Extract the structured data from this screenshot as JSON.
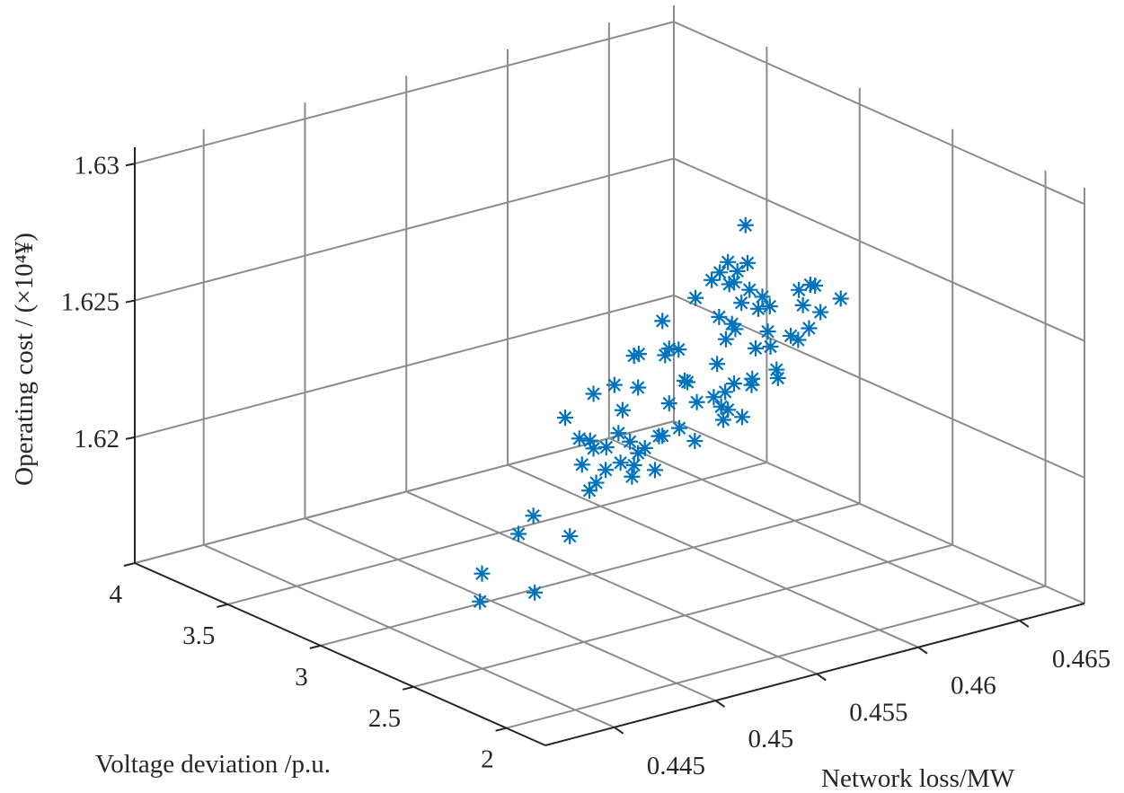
{
  "chart_data": {
    "type": "scatter",
    "projection": "3d",
    "title": "",
    "xlabel": "Voltage deviation /p.u.",
    "ylabel": "Network loss/MW",
    "zlabel": "Operating cost / (×10⁴¥)",
    "xlim": [
      1.79,
      4.0
    ],
    "ylim": [
      0.4416,
      0.4682
    ],
    "zlim": [
      1.6154,
      1.6306
    ],
    "xticks": [
      2,
      2.5,
      3,
      3.5,
      4
    ],
    "xtick_labels": [
      "2",
      "2.5",
      "3",
      "3.5",
      "4"
    ],
    "yticks": [
      0.445,
      0.45,
      0.455,
      0.46,
      0.465
    ],
    "ytick_labels": [
      "0.445",
      "0.45",
      "0.455",
      "0.46",
      "0.465"
    ],
    "zticks": [
      1.62,
      1.625,
      1.63
    ],
    "ztick_labels": [
      "1.62",
      "1.625",
      "1.63"
    ],
    "grid": true,
    "marker": "asterisk",
    "colors": {
      "points": "#0072BD",
      "grid": "#8c8c8c",
      "axis": "#262626"
    },
    "points": [
      [
        2.6,
        0.4589,
        1.6286
      ],
      [
        3.0,
        0.4617,
        1.6255
      ],
      [
        2.6,
        0.459,
        1.6272
      ],
      [
        3.0,
        0.4613,
        1.6252
      ],
      [
        2.6,
        0.4585,
        1.627
      ],
      [
        3.0,
        0.4609,
        1.625
      ],
      [
        2.6,
        0.4581,
        1.6266
      ],
      [
        3.0,
        0.462,
        1.6247
      ],
      [
        2.6,
        0.4591,
        1.6262
      ],
      [
        3.0,
        0.4634,
        1.6239
      ],
      [
        2.6,
        0.4587,
        1.6258
      ],
      [
        3.0,
        0.4632,
        1.6235
      ],
      [
        2.6,
        0.4601,
        1.6254
      ],
      [
        3.0,
        0.4652,
        1.6238
      ],
      [
        2.6,
        0.4621,
        1.6258
      ],
      [
        3.0,
        0.466,
        1.6238
      ],
      [
        2.6,
        0.4636,
        1.625
      ],
      [
        3.0,
        0.4654,
        1.6232
      ],
      [
        2.6,
        0.4626,
        1.6247
      ],
      [
        3.0,
        0.4601,
        1.6245
      ],
      [
        2.6,
        0.4576,
        1.6255
      ],
      [
        3.0,
        0.4619,
        1.6232
      ],
      [
        2.6,
        0.4584,
        1.6249
      ],
      [
        3.0,
        0.4616,
        1.6227
      ],
      [
        2.6,
        0.46,
        1.6245
      ],
      [
        3.0,
        0.4638,
        1.622
      ],
      [
        2.6,
        0.4594,
        1.624
      ],
      [
        3.0,
        0.4648,
        1.6222
      ],
      [
        2.6,
        0.4615,
        1.6239
      ],
      [
        3.0,
        0.4657,
        1.6223
      ],
      [
        2.6,
        0.4548,
        1.6259
      ],
      [
        3.0,
        0.4588,
        1.6229
      ],
      [
        2.6,
        0.4556,
        1.6247
      ],
      [
        3.0,
        0.4586,
        1.6227
      ],
      [
        2.6,
        0.4534,
        1.6249
      ],
      [
        3.0,
        0.4573,
        1.623
      ],
      [
        2.6,
        0.4575,
        1.6238
      ],
      [
        3.0,
        0.4641,
        1.6211
      ],
      [
        2.6,
        0.4605,
        1.6227
      ],
      [
        3.0,
        0.4629,
        1.621
      ],
      [
        2.6,
        0.4592,
        1.6227
      ],
      [
        3.0,
        0.462,
        1.621
      ],
      [
        2.6,
        0.4559,
        1.6235
      ],
      [
        3.0,
        0.4597,
        1.6215
      ],
      [
        2.6,
        0.4579,
        1.6227
      ],
      [
        3.0,
        0.461,
        1.6207
      ],
      [
        2.6,
        0.4565,
        1.6226
      ],
      [
        3.0,
        0.4588,
        1.6209
      ],
      [
        2.6,
        0.4514,
        1.6239
      ],
      [
        3.0,
        0.4561,
        1.6221
      ],
      [
        2.6,
        0.4536,
        1.6237
      ],
      [
        3.0,
        0.4565,
        1.6211
      ],
      [
        2.6,
        0.4577,
        1.6222
      ],
      [
        3.0,
        0.4617,
        1.6201
      ],
      [
        2.6,
        0.4578,
        1.6217
      ],
      [
        3.0,
        0.4624,
        1.6197
      ],
      [
        2.6,
        0.45,
        1.6233
      ],
      [
        3.0,
        0.4563,
        1.6203
      ],
      [
        2.6,
        0.4507,
        1.6224
      ],
      [
        3.0,
        0.4549,
        1.6203
      ],
      [
        2.6,
        0.4514,
        1.6219
      ],
      [
        3.0,
        0.4557,
        1.6199
      ],
      [
        2.6,
        0.4532,
        1.6218
      ],
      [
        3.0,
        0.4583,
        1.6198
      ],
      [
        2.6,
        0.4548,
        1.6217
      ],
      [
        3.0,
        0.4593,
        1.6199
      ],
      [
        2.6,
        0.4564,
        1.6212
      ],
      [
        3.0,
        0.4576,
        1.6195
      ],
      [
        2.6,
        0.4536,
        1.6213
      ],
      [
        3.0,
        0.4545,
        1.6195
      ],
      [
        2.6,
        0.452,
        1.621
      ],
      [
        3.0,
        0.4564,
        1.6192
      ],
      [
        2.6,
        0.4534,
        1.6209
      ],
      [
        3.0,
        0.4581,
        1.6186
      ],
      [
        2.6,
        0.4533,
        1.6205
      ],
      [
        3.0,
        0.4552,
        1.6187
      ],
      [
        2.6,
        0.4512,
        1.6204
      ],
      [
        3.0,
        0.4521,
        1.6181
      ],
      [
        2.6,
        0.4477,
        1.6195
      ],
      [
        3.0,
        0.4539,
        1.617
      ],
      [
        2.6,
        0.4459,
        1.6184
      ],
      [
        2.6,
        0.4485,
        1.6172
      ],
      [
        2.6,
        0.4458,
        1.6174
      ]
    ]
  }
}
